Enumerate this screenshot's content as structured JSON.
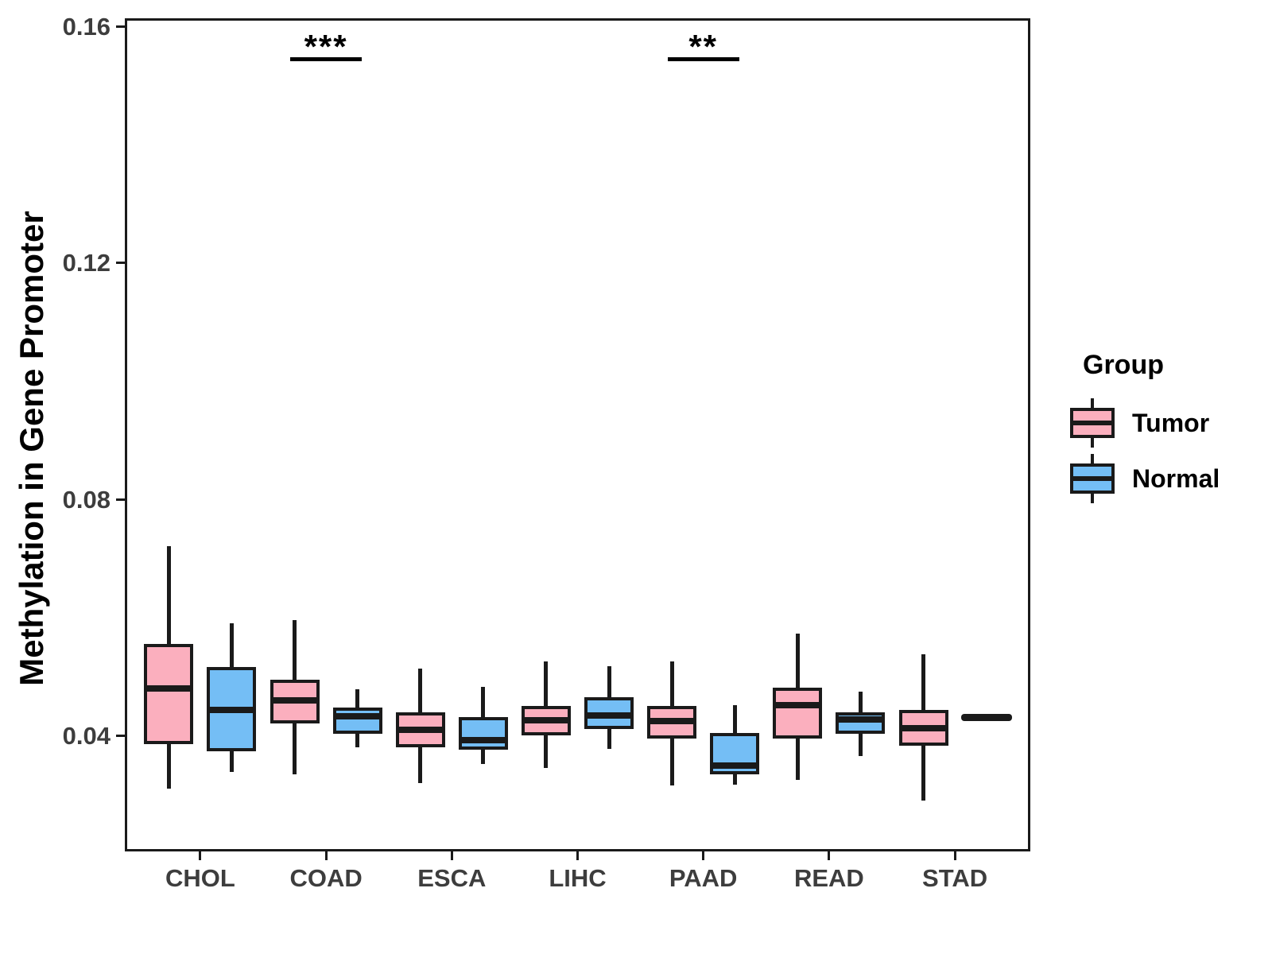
{
  "figure": {
    "y_axis_title": "Methylation in Gene Promoter"
  },
  "legend": {
    "title": "Group",
    "items": [
      {
        "label": "Tumor",
        "color": "#FBAFBE"
      },
      {
        "label": "Normal",
        "color": "#74BEF5"
      }
    ]
  },
  "chart_data": {
    "type": "boxplot",
    "title": "",
    "xlabel": "",
    "ylabel": "Methylation in Gene Promoter",
    "categories": [
      "CHOL",
      "COAD",
      "ESCA",
      "LIHC",
      "PAAD",
      "READ",
      "STAD"
    ],
    "y_ticks": [
      0.04,
      0.08,
      0.12,
      0.16
    ],
    "ylim": [
      0.0204,
      0.1614
    ],
    "grid": false,
    "legend_position": "right",
    "colors": {
      "tumor_fill": "#FBAFBE",
      "normal_fill": "#74BEF5",
      "box_stroke": "#1a1a1a",
      "tick_label": "#3d3d3d"
    },
    "series": [
      {
        "name": "Tumor",
        "color": "#FBAFBE",
        "boxes": [
          {
            "category": "CHOL",
            "whisker_low": 0.031,
            "q1": 0.0385,
            "median": 0.048,
            "q3": 0.0555,
            "whisker_high": 0.072
          },
          {
            "category": "COAD",
            "whisker_low": 0.0335,
            "q1": 0.042,
            "median": 0.046,
            "q3": 0.0495,
            "whisker_high": 0.0595
          },
          {
            "category": "ESCA",
            "whisker_low": 0.032,
            "q1": 0.038,
            "median": 0.041,
            "q3": 0.044,
            "whisker_high": 0.0513
          },
          {
            "category": "LIHC",
            "whisker_low": 0.0345,
            "q1": 0.04,
            "median": 0.0426,
            "q3": 0.045,
            "whisker_high": 0.0525
          },
          {
            "category": "PAAD",
            "whisker_low": 0.0315,
            "q1": 0.0395,
            "median": 0.0424,
            "q3": 0.045,
            "whisker_high": 0.0526
          },
          {
            "category": "READ",
            "whisker_low": 0.0325,
            "q1": 0.0395,
            "median": 0.0451,
            "q3": 0.0481,
            "whisker_high": 0.0572
          },
          {
            "category": "STAD",
            "whisker_low": 0.029,
            "q1": 0.0383,
            "median": 0.0412,
            "q3": 0.0443,
            "whisker_high": 0.0537
          }
        ]
      },
      {
        "name": "Normal",
        "color": "#74BEF5",
        "boxes": [
          {
            "category": "CHOL",
            "whisker_low": 0.0339,
            "q1": 0.0373,
            "median": 0.0444,
            "q3": 0.0516,
            "whisker_high": 0.059
          },
          {
            "category": "COAD",
            "whisker_low": 0.038,
            "q1": 0.0403,
            "median": 0.0433,
            "q3": 0.0447,
            "whisker_high": 0.0478
          },
          {
            "category": "ESCA",
            "whisker_low": 0.0352,
            "q1": 0.0376,
            "median": 0.0393,
            "q3": 0.0431,
            "whisker_high": 0.0482
          },
          {
            "category": "LIHC",
            "whisker_low": 0.0377,
            "q1": 0.0411,
            "median": 0.0434,
            "q3": 0.0465,
            "whisker_high": 0.0518
          },
          {
            "category": "PAAD",
            "whisker_low": 0.0317,
            "q1": 0.0334,
            "median": 0.0349,
            "q3": 0.0405,
            "whisker_high": 0.0451
          },
          {
            "category": "READ",
            "whisker_low": 0.0365,
            "q1": 0.0403,
            "median": 0.0427,
            "q3": 0.0439,
            "whisker_high": 0.0474
          },
          {
            "category": "STAD",
            "value": 0.0431
          }
        ]
      }
    ],
    "annotations": [
      {
        "category": "COAD",
        "label": "***"
      },
      {
        "category": "PAAD",
        "label": "**"
      }
    ]
  }
}
